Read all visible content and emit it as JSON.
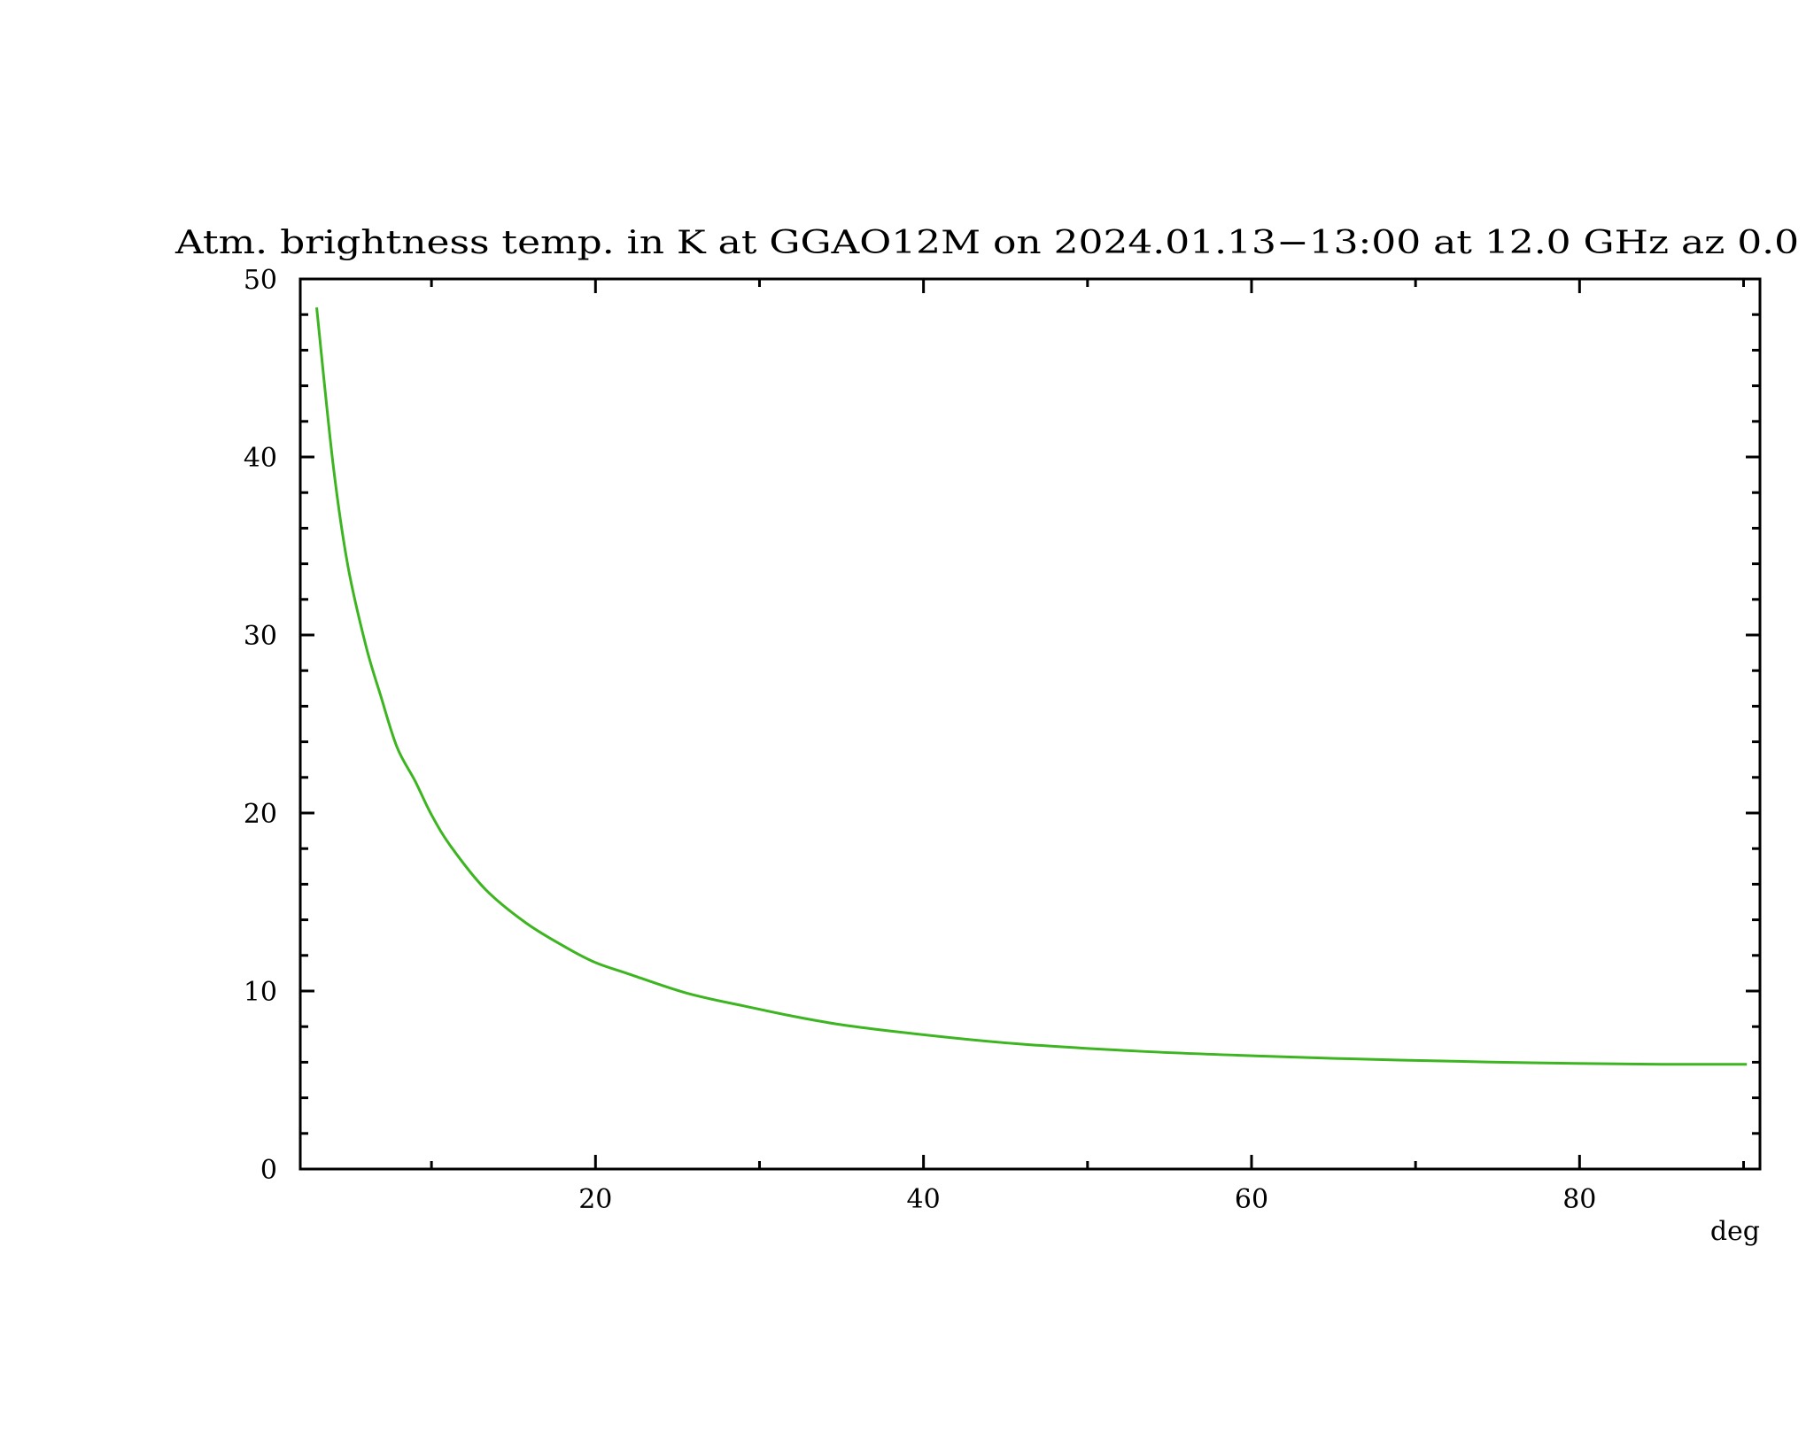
{
  "chart_data": {
    "type": "line",
    "title": "Atm. brightness temp. in K at GGAO12M  on 2024.01.13−13:00 at  12.0 GHz az   0.0",
    "xlabel": "deg",
    "ylabel": "",
    "xlim": [
      2,
      91
    ],
    "ylim": [
      0,
      50
    ],
    "x_major_ticks": [
      20,
      40,
      60,
      80
    ],
    "x_minor_ticks": [
      10,
      30,
      50,
      70,
      90
    ],
    "x_tick_labels": [
      "20",
      "40",
      "60",
      "80"
    ],
    "y_major_ticks": [
      0,
      10,
      20,
      30,
      40,
      50
    ],
    "y_tick_labels": [
      "0",
      "10",
      "20",
      "30",
      "40",
      "50"
    ],
    "y_minor_step": 2,
    "grid": false,
    "line_color": "#3cb521",
    "series": [
      {
        "x": [
          3.0,
          4.0,
          4.9,
          6.0,
          6.9,
          7.9,
          9.0,
          10.0,
          11.2,
          13.3,
          15.8,
          18.3,
          20.0,
          21.9,
          25.5,
          29.1,
          33.1,
          37.1,
          45.1,
          53.1,
          61.1,
          69.0,
          77.0,
          85.0,
          90.2
        ],
        "y": [
          48.4,
          39.6,
          33.9,
          29.4,
          26.6,
          23.7,
          21.8,
          19.9,
          18.1,
          15.7,
          13.8,
          12.4,
          11.6,
          11.0,
          9.9,
          9.15,
          8.4,
          7.85,
          7.08,
          6.62,
          6.33,
          6.12,
          5.97,
          5.88,
          5.88
        ]
      }
    ]
  }
}
